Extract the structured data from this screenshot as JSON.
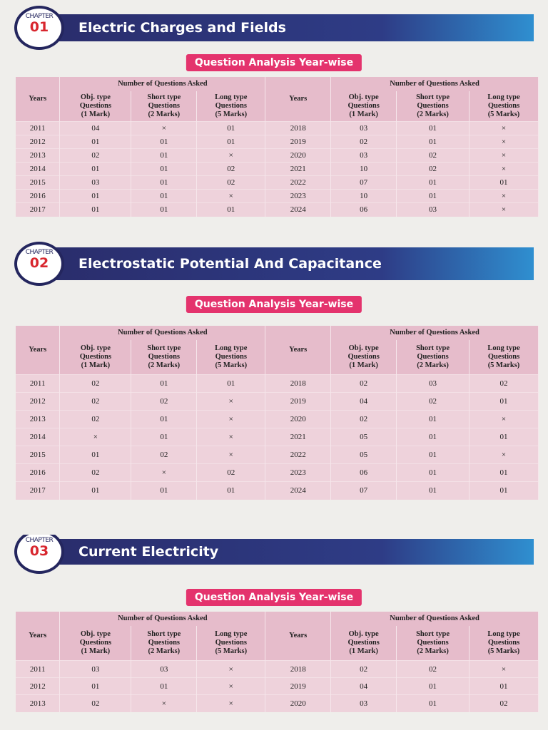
{
  "chapters": [
    {
      "badge": "CHAPTER",
      "number": "01",
      "title": "Electric Charges and Fields",
      "banner": "Question Analysis Year-wise",
      "table": {
        "group_header": "Number of Questions Asked",
        "columns": [
          "Years",
          "Obj. type\nQuestions\n(1 Mark)",
          "Short type\nQuestions\n(2 Marks)",
          "Long type\nQuestions\n(5 Marks)"
        ],
        "rows": [
          [
            "2011",
            "04",
            "×",
            "01",
            "2018",
            "03",
            "01",
            "×"
          ],
          [
            "2012",
            "01",
            "01",
            "01",
            "2019",
            "02",
            "01",
            "×"
          ],
          [
            "2013",
            "02",
            "01",
            "×",
            "2020",
            "03",
            "02",
            "×"
          ],
          [
            "2014",
            "01",
            "01",
            "02",
            "2021",
            "10",
            "02",
            "×"
          ],
          [
            "2015",
            "03",
            "01",
            "02",
            "2022",
            "07",
            "01",
            "01"
          ],
          [
            "2016",
            "01",
            "01",
            "×",
            "2023",
            "10",
            "01",
            "×"
          ],
          [
            "2017",
            "01",
            "01",
            "01",
            "2024",
            "06",
            "03",
            "×"
          ]
        ]
      }
    },
    {
      "badge": "CHAPTER",
      "number": "02",
      "title": "Electrostatic Potential And Capacitance",
      "banner": "Question Analysis Year-wise",
      "table": {
        "group_header": "Number of Questions Asked",
        "columns": [
          "Years",
          "Obj. type\nQuestions\n(1 Mark)",
          "Short type\nQuestions\n(2 Marks)",
          "Long type\nQuestions\n(5 Marks)"
        ],
        "rows": [
          [
            "2011",
            "02",
            "01",
            "01",
            "2018",
            "02",
            "03",
            "02"
          ],
          [
            "2012",
            "02",
            "02",
            "×",
            "2019",
            "04",
            "02",
            "01"
          ],
          [
            "2013",
            "02",
            "01",
            "×",
            "2020",
            "02",
            "01",
            "×"
          ],
          [
            "2014",
            "×",
            "01",
            "×",
            "2021",
            "05",
            "01",
            "01"
          ],
          [
            "2015",
            "01",
            "02",
            "×",
            "2022",
            "05",
            "01",
            "×"
          ],
          [
            "2016",
            "02",
            "×",
            "02",
            "2023",
            "06",
            "01",
            "01"
          ],
          [
            "2017",
            "01",
            "01",
            "01",
            "2024",
            "07",
            "01",
            "01"
          ]
        ]
      }
    },
    {
      "badge": "CHAPTER",
      "number": "03",
      "title": "Current Electricity",
      "banner": "Question Analysis Year-wise",
      "table": {
        "group_header": "Number of Questions Asked",
        "columns": [
          "Years",
          "Obj. type\nQuestions\n(1 Mark)",
          "Short type\nQuestions\n(2 Marks)",
          "Long type\nQuestions\n(5 Marks)"
        ],
        "rows": [
          [
            "2011",
            "03",
            "03",
            "×",
            "2018",
            "02",
            "02",
            "×"
          ],
          [
            "2012",
            "01",
            "01",
            "×",
            "2019",
            "04",
            "01",
            "01"
          ],
          [
            "2013",
            "02",
            "×",
            "×",
            "2020",
            "03",
            "01",
            "02"
          ]
        ]
      }
    }
  ]
}
